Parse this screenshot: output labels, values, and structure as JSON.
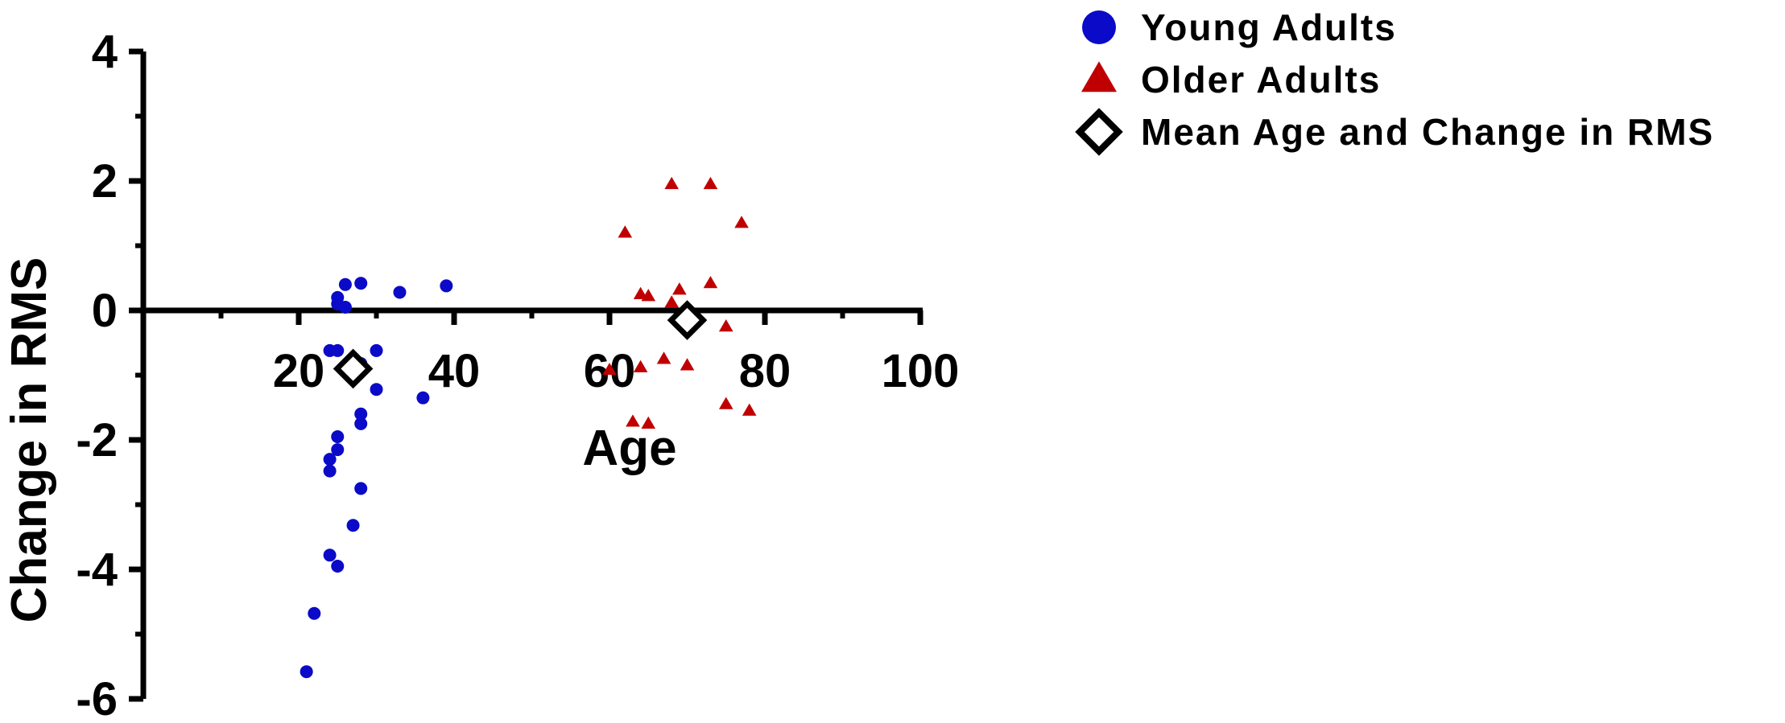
{
  "chart_data": {
    "type": "scatter",
    "title": "",
    "xlabel": "Age",
    "ylabel": "Change in RMS",
    "xlim": [
      0,
      100
    ],
    "ylim": [
      -6,
      4
    ],
    "xticks": [
      20,
      40,
      60,
      80,
      100
    ],
    "yticks": [
      -6,
      -4,
      -2,
      0,
      2,
      4
    ],
    "legend_position": "top-right",
    "series": [
      {
        "name": "Young Adults",
        "marker": "circle",
        "color": "#0a0ac8",
        "points": [
          [
            26,
            0.4
          ],
          [
            28,
            0.42
          ],
          [
            25,
            0.2
          ],
          [
            25,
            0.1
          ],
          [
            26,
            0.05
          ],
          [
            33,
            0.28
          ],
          [
            39,
            0.38
          ],
          [
            24,
            -0.62
          ],
          [
            25,
            -0.62
          ],
          [
            27,
            -0.75
          ],
          [
            28,
            -0.82
          ],
          [
            26,
            -0.9
          ],
          [
            27,
            -1.0
          ],
          [
            30,
            -0.62
          ],
          [
            30,
            -1.22
          ],
          [
            36,
            -1.35
          ],
          [
            28,
            -1.6
          ],
          [
            28,
            -1.75
          ],
          [
            25,
            -1.95
          ],
          [
            25,
            -2.15
          ],
          [
            24,
            -2.3
          ],
          [
            24,
            -2.48
          ],
          [
            28,
            -2.75
          ],
          [
            27,
            -3.32
          ],
          [
            24,
            -3.78
          ],
          [
            25,
            -3.95
          ],
          [
            22,
            -4.68
          ],
          [
            21,
            -5.58
          ]
        ]
      },
      {
        "name": "Older Adults",
        "marker": "triangle",
        "color": "#c00000",
        "points": [
          [
            68,
            1.95
          ],
          [
            73,
            1.95
          ],
          [
            77,
            1.35
          ],
          [
            62,
            1.2
          ],
          [
            73,
            0.42
          ],
          [
            69,
            0.32
          ],
          [
            64,
            0.25
          ],
          [
            65,
            0.22
          ],
          [
            68,
            0.12
          ],
          [
            64,
            -0.88
          ],
          [
            67,
            -0.75
          ],
          [
            70,
            -0.85
          ],
          [
            75,
            -0.25
          ],
          [
            60,
            -0.92
          ],
          [
            75,
            -1.45
          ],
          [
            78,
            -1.55
          ],
          [
            63,
            -1.72
          ],
          [
            65,
            -1.75
          ]
        ]
      },
      {
        "name": "Mean Age and Change in  RMS",
        "marker": "diamond",
        "color": "#000000",
        "points": [
          [
            27,
            -0.9
          ],
          [
            70,
            -0.15
          ]
        ]
      }
    ]
  }
}
